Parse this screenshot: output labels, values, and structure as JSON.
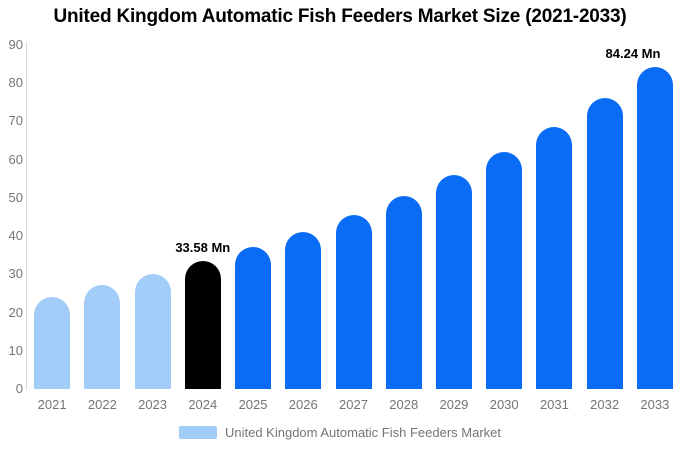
{
  "title": "United Kingdom Automatic Fish Feeders Market Size (2021-2033)",
  "legend": {
    "label": "United Kingdom Automatic Fish Feeders Market",
    "swatch_color": "#A3CDF9"
  },
  "colors": {
    "historical_bar": "#A3CDF9",
    "highlight_bar": "#000000",
    "forecast_bar": "#0A6CF5",
    "axis_text": "#757575",
    "axis_line": "#d9d9d9",
    "title_text": "#000000",
    "background": "#ffffff"
  },
  "chart_data": {
    "type": "bar",
    "title": "United Kingdom Automatic Fish Feeders Market Size (2021-2033)",
    "unit": "Mn",
    "categories": [
      "2021",
      "2022",
      "2023",
      "2024",
      "2025",
      "2026",
      "2027",
      "2028",
      "2029",
      "2030",
      "2031",
      "2032",
      "2033"
    ],
    "values": [
      24.2,
      27.3,
      30.2,
      33.58,
      37.2,
      41.2,
      45.6,
      50.5,
      56.0,
      61.9,
      68.6,
      76.1,
      84.24
    ],
    "bar_colors": [
      "#A3CDF9",
      "#A3CDF9",
      "#A3CDF9",
      "#000000",
      "#0A6CF5",
      "#0A6CF5",
      "#0A6CF5",
      "#0A6CF5",
      "#0A6CF5",
      "#0A6CF5",
      "#0A6CF5",
      "#0A6CF5",
      "#0A6CF5"
    ],
    "data_labels": [
      {
        "index": 3,
        "text": "33.58 Mn"
      },
      {
        "index": 12,
        "text": "84.24 Mn"
      }
    ],
    "xlabel": "",
    "ylabel": "",
    "ylim": [
      0,
      90
    ],
    "yticks": [
      0,
      10,
      20,
      30,
      40,
      50,
      60,
      70,
      80,
      90
    ],
    "grid": false,
    "legend_position": "bottom",
    "legend_entries": [
      "United Kingdom Automatic Fish Feeders Market"
    ]
  }
}
